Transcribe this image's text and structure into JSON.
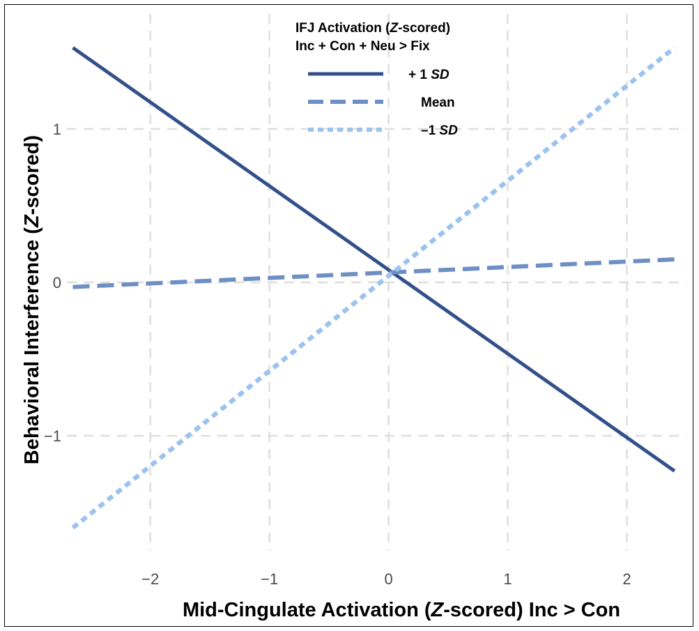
{
  "chart_data": {
    "type": "line",
    "xlabel_parts": [
      "Mid-Cingulate Activation (",
      "Z",
      "-scored) Inc > Con"
    ],
    "ylabel_parts": [
      "Behavioral Interference (",
      "Z",
      "-scored)"
    ],
    "xlim": [
      -2.7,
      2.5
    ],
    "ylim": [
      -1.75,
      1.75
    ],
    "x_ticks": [
      -2,
      -1,
      0,
      1,
      2
    ],
    "x_tick_labels": [
      "−2",
      "−1",
      "0",
      "1",
      "2"
    ],
    "y_ticks": [
      -1,
      0,
      1
    ],
    "y_tick_labels": [
      "−1",
      "0",
      "1"
    ],
    "grid": true,
    "legend": {
      "placement": "top-center",
      "title_line1_parts": [
        "IFJ Activation (",
        "Z",
        "-scored)"
      ],
      "title_line2": "Inc + Con + Neu > Fix"
    },
    "series": [
      {
        "name_parts": [
          "+ 1 ",
          "SD"
        ],
        "color": "#34508a",
        "dash": "solid",
        "x": [
          -2.65,
          2.4
        ],
        "y": [
          1.53,
          -1.23
        ]
      },
      {
        "name_parts": [
          "Mean",
          ""
        ],
        "color": "#6d8fc4",
        "dash": "dashed",
        "x": [
          -2.65,
          2.4
        ],
        "y": [
          -0.03,
          0.15
        ]
      },
      {
        "name_parts": [
          "–1 ",
          "SD"
        ],
        "color": "#9cc3ee",
        "dash": "dotted",
        "x": [
          -2.65,
          2.4
        ],
        "y": [
          -1.6,
          1.53
        ]
      }
    ]
  }
}
